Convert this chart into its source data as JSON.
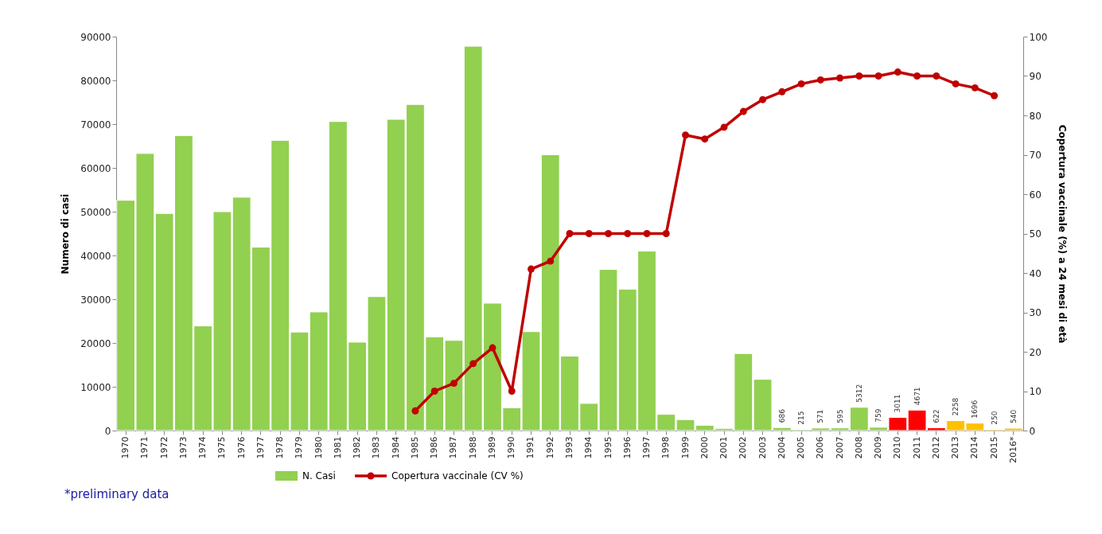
{
  "chart_data": {
    "type": "bar",
    "ylabel": "Numero di casi",
    "y2label": "Copertura vaccinale (%) a 24 mesi di età",
    "categories": [
      "1970",
      "1971",
      "1972",
      "1973",
      "1974",
      "1975",
      "1976",
      "1977",
      "1978",
      "1979",
      "1980",
      "1981",
      "1982",
      "1983",
      "1984",
      "1985",
      "1986",
      "1987",
      "1988",
      "1989",
      "1990",
      "1991",
      "1992",
      "1993",
      "1994",
      "1995",
      "1996",
      "1997",
      "1998",
      "1999",
      "2000",
      "2001",
      "2002",
      "2003",
      "2004",
      "2005",
      "2006",
      "2007",
      "2008",
      "2009",
      "2010",
      "2011",
      "2012",
      "2013",
      "2014",
      "2015",
      "2016*"
    ],
    "series": [
      {
        "name": "N. Casi",
        "color": "#92d050",
        "colors": [
          "#92d050",
          "#92d050",
          "#92d050",
          "#92d050",
          "#92d050",
          "#92d050",
          "#92d050",
          "#92d050",
          "#92d050",
          "#92d050",
          "#92d050",
          "#92d050",
          "#92d050",
          "#92d050",
          "#92d050",
          "#92d050",
          "#92d050",
          "#92d050",
          "#92d050",
          "#92d050",
          "#92d050",
          "#92d050",
          "#92d050",
          "#92d050",
          "#92d050",
          "#92d050",
          "#92d050",
          "#92d050",
          "#92d050",
          "#92d050",
          "#92d050",
          "#92d050",
          "#92d050",
          "#92d050",
          "#92d050",
          "#92d050",
          "#92d050",
          "#92d050",
          "#92d050",
          "#92d050",
          "#ff0000",
          "#ff0000",
          "#ff0000",
          "#ffc000",
          "#ffc000",
          "#ffc000",
          "#ffc000"
        ],
        "values": [
          52600,
          63300,
          49600,
          67400,
          23900,
          50000,
          53300,
          41900,
          66300,
          22500,
          27100,
          70600,
          20200,
          30600,
          71100,
          74500,
          21400,
          20600,
          87800,
          29100,
          5200,
          22600,
          63000,
          17000,
          6200,
          36800,
          32300,
          41000,
          3700,
          2500,
          1200,
          500,
          17600,
          11700,
          686,
          215,
          571,
          595,
          5312,
          759,
          3011,
          4671,
          622,
          2258,
          1696,
          250,
          540
        ],
        "value_labels": [
          null,
          null,
          null,
          null,
          null,
          null,
          null,
          null,
          null,
          null,
          null,
          null,
          null,
          null,
          null,
          null,
          null,
          null,
          null,
          null,
          null,
          null,
          null,
          null,
          null,
          null,
          null,
          null,
          null,
          null,
          null,
          null,
          null,
          null,
          "686",
          "215",
          "571",
          "595",
          "5312",
          "759",
          "3011",
          "4671",
          "622",
          "2258",
          "1696",
          "250",
          "540"
        ]
      },
      {
        "name": "Copertura vaccinale (CV %)",
        "type": "line",
        "axis": "y2",
        "color": "#c00000",
        "marker": "circle",
        "line_style": "solid",
        "values": [
          null,
          null,
          null,
          null,
          null,
          null,
          null,
          null,
          null,
          null,
          null,
          null,
          null,
          null,
          null,
          5,
          10,
          12,
          17,
          21,
          10,
          41,
          43,
          50,
          50,
          50,
          50,
          50,
          50,
          75,
          74,
          77,
          81,
          84,
          86,
          88,
          89,
          89.5,
          90,
          90,
          91,
          90,
          90,
          88,
          87,
          85,
          null
        ]
      }
    ],
    "ylim": [
      0,
      90000
    ],
    "yticks": [
      0,
      10000,
      20000,
      30000,
      40000,
      50000,
      60000,
      70000,
      80000,
      90000
    ],
    "y2lim": [
      0,
      100
    ],
    "y2ticks": [
      0,
      10,
      20,
      30,
      40,
      50,
      60,
      70,
      80,
      90,
      100
    ],
    "grid": false,
    "legend": "bottom",
    "annotations": [
      "*preliminary data"
    ]
  }
}
